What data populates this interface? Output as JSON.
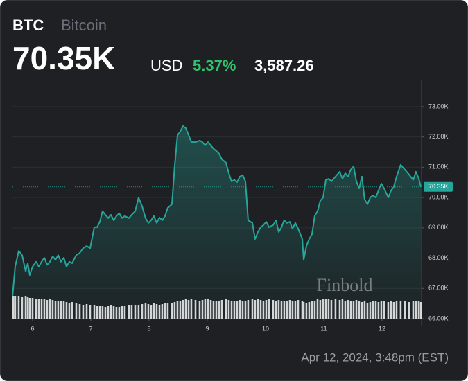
{
  "chart_data": {
    "type": "line",
    "symbol": "BTC",
    "name": "Bitcoin",
    "price": "70.35K",
    "currency": "USD",
    "change_pct": "5.37%",
    "change": "3,587.26",
    "watermark": "Finbold",
    "timestamp": "Apr 12, 2024, 3:48pm (EST)",
    "line_color": "#26a69a",
    "xlim": [
      5.655,
      12.679
    ],
    "xticks": [
      6,
      7,
      8,
      9,
      10,
      11,
      12
    ],
    "ylim": [
      66000,
      73890
    ],
    "yticks": [
      {
        "value": 66000,
        "label": "66.00K"
      },
      {
        "value": 67000,
        "label": "67.00K"
      },
      {
        "value": 68000,
        "label": "68.00K"
      },
      {
        "value": 69000,
        "label": "69.00K"
      },
      {
        "value": 70000,
        "label": "70.00K"
      },
      {
        "value": 71000,
        "label": "71.00K"
      },
      {
        "value": 72000,
        "label": "72.00K"
      },
      {
        "value": 73000,
        "label": "73.00K"
      }
    ],
    "grid": true,
    "last_price": {
      "value": 70350,
      "label": "70.35K"
    },
    "x": [
      5.655,
      5.702,
      5.762,
      5.821,
      5.881,
      5.917,
      5.952,
      6,
      6.06,
      6.107,
      6.155,
      6.202,
      6.25,
      6.298,
      6.345,
      6.393,
      6.44,
      6.488,
      6.536,
      6.583,
      6.631,
      6.679,
      6.75,
      6.81,
      6.869,
      6.929,
      6.988,
      7.06,
      7.107,
      7.155,
      7.202,
      7.25,
      7.298,
      7.345,
      7.393,
      7.44,
      7.488,
      7.536,
      7.583,
      7.655,
      7.702,
      7.762,
      7.821,
      7.881,
      7.94,
      7.988,
      8.036,
      8.083,
      8.131,
      8.179,
      8.226,
      8.274,
      8.321,
      8.393,
      8.44,
      8.488,
      8.536,
      8.583,
      8.631,
      8.679,
      8.726,
      8.798,
      8.869,
      8.917,
      8.964,
      9.012,
      9.06,
      9.107,
      9.155,
      9.202,
      9.25,
      9.321,
      9.369,
      9.417,
      9.464,
      9.512,
      9.56,
      9.607,
      9.655,
      9.702,
      9.774,
      9.821,
      9.869,
      9.917,
      9.964,
      10.012,
      10.06,
      10.131,
      10.179,
      10.226,
      10.274,
      10.321,
      10.369,
      10.417,
      10.464,
      10.512,
      10.56,
      10.631,
      10.655,
      10.702,
      10.75,
      10.798,
      10.845,
      10.893,
      10.94,
      10.988,
      11.036,
      11.083,
      11.131,
      11.202,
      11.274,
      11.321,
      11.369,
      11.417,
      11.464,
      11.512,
      11.56,
      11.607,
      11.655,
      11.702,
      11.75,
      11.798,
      11.845,
      11.893,
      11.94,
      11.988,
      12.036,
      12.107,
      12.155,
      12.202,
      12.25,
      12.321,
      12.393,
      12.464,
      12.536,
      12.583,
      12.631,
      12.667
    ],
    "values": [
      66730,
      67720,
      68240,
      68100,
      67560,
      67830,
      67440,
      67720,
      67880,
      67720,
      67880,
      68010,
      67780,
      67880,
      68060,
      67940,
      68100,
      67880,
      68010,
      67720,
      67880,
      67830,
      68100,
      68170,
      68330,
      68400,
      68330,
      69020,
      69020,
      69200,
      69550,
      69430,
      69320,
      69430,
      69250,
      69390,
      69480,
      69320,
      69390,
      69320,
      69430,
      69550,
      70000,
      69710,
      69320,
      69160,
      69250,
      69390,
      69160,
      69340,
      69250,
      69390,
      69660,
      69780,
      71030,
      72060,
      72180,
      72360,
      72290,
      72060,
      71830,
      71830,
      71880,
      71830,
      71720,
      71830,
      71720,
      71610,
      71540,
      71450,
      71260,
      71150,
      70800,
      70530,
      70580,
      70510,
      70690,
      70740,
      70530,
      69250,
      69160,
      68630,
      68860,
      69020,
      69090,
      69200,
      69020,
      69090,
      69250,
      68860,
      69020,
      69250,
      69160,
      69200,
      68970,
      69160,
      68970,
      68630,
      67940,
      68400,
      68630,
      68790,
      69390,
      69550,
      69890,
      70000,
      70580,
      70620,
      70530,
      70690,
      70850,
      70620,
      70800,
      70690,
      70920,
      71030,
      70530,
      70300,
      70690,
      69940,
      69780,
      70000,
      70070,
      70000,
      70230,
      70460,
      70300,
      70000,
      70230,
      70350,
      70690,
      71080,
      70920,
      70760,
      70580,
      70850,
      70620,
      70350
    ],
    "volume": [
      32,
      33,
      32,
      31,
      32,
      31,
      30,
      30,
      29,
      29,
      28,
      28,
      27,
      28,
      27,
      26,
      25,
      26,
      25,
      24,
      23,
      24,
      22,
      21,
      20,
      21,
      20,
      19,
      18,
      18,
      18,
      17,
      18,
      19,
      18,
      17,
      17,
      18,
      18,
      19,
      20,
      19,
      20,
      21,
      22,
      21,
      20,
      22,
      21,
      20,
      21,
      22,
      23,
      22,
      24,
      25,
      26,
      27,
      28,
      27,
      28,
      27,
      26,
      27,
      29,
      28,
      27,
      26,
      25,
      26,
      27,
      28,
      27,
      26,
      25,
      26,
      27,
      26,
      25,
      27,
      28,
      27,
      28,
      27,
      26,
      27,
      28,
      27,
      26,
      27,
      26,
      25,
      26,
      27,
      25,
      26,
      27,
      25,
      24,
      22,
      24,
      26,
      25,
      28,
      27,
      28,
      29,
      28,
      27,
      28,
      27,
      28,
      26,
      27,
      25,
      26,
      27,
      25,
      24,
      25,
      23,
      24,
      26,
      25,
      24,
      25,
      26,
      24,
      25,
      24,
      25,
      26,
      25,
      24,
      25,
      26,
      25,
      24
    ],
    "volume_color": "#d9d9d9"
  }
}
